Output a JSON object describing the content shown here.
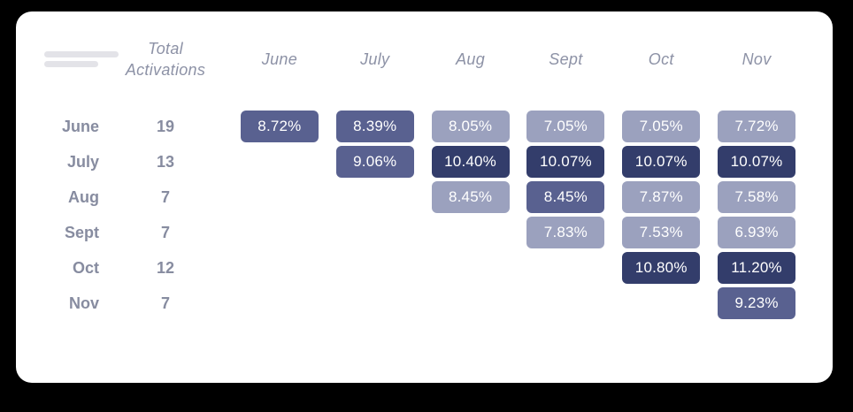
{
  "colors": {
    "background": "#000000",
    "card_background": "#ffffff",
    "light": "#9ba1be",
    "medium": "#596190",
    "dark": "#333d6b",
    "cell_text": "#ffffff",
    "header_text": "#8d92a6",
    "row_label_text": "#878ca0",
    "skeleton_bar": "#e3e3e8"
  },
  "chart_data": {
    "type": "heatmap",
    "title": "",
    "total_label": "Total Activations",
    "columns": [
      "June",
      "July",
      "Aug",
      "Sept",
      "Oct",
      "Nov"
    ],
    "legend_levels": [
      "light",
      "medium",
      "dark"
    ],
    "rows": [
      {
        "label": "June",
        "total": "19",
        "cells": [
          {
            "col": 0,
            "value": "8.72%",
            "level": "medium"
          },
          {
            "col": 1,
            "value": "8.39%",
            "level": "medium"
          },
          {
            "col": 2,
            "value": "8.05%",
            "level": "light"
          },
          {
            "col": 3,
            "value": "7.05%",
            "level": "light"
          },
          {
            "col": 4,
            "value": "7.05%",
            "level": "light"
          },
          {
            "col": 5,
            "value": "7.72%",
            "level": "light"
          }
        ]
      },
      {
        "label": "July",
        "total": "13",
        "cells": [
          {
            "col": 1,
            "value": "9.06%",
            "level": "medium"
          },
          {
            "col": 2,
            "value": "10.40%",
            "level": "dark"
          },
          {
            "col": 3,
            "value": "10.07%",
            "level": "dark"
          },
          {
            "col": 4,
            "value": "10.07%",
            "level": "dark"
          },
          {
            "col": 5,
            "value": "10.07%",
            "level": "dark"
          }
        ]
      },
      {
        "label": "Aug",
        "total": "7",
        "cells": [
          {
            "col": 2,
            "value": "8.45%",
            "level": "light"
          },
          {
            "col": 3,
            "value": "8.45%",
            "level": "medium"
          },
          {
            "col": 4,
            "value": "7.87%",
            "level": "light"
          },
          {
            "col": 5,
            "value": "7.58%",
            "level": "light"
          }
        ]
      },
      {
        "label": "Sept",
        "total": "7",
        "cells": [
          {
            "col": 3,
            "value": "7.83%",
            "level": "light"
          },
          {
            "col": 4,
            "value": "7.53%",
            "level": "light"
          },
          {
            "col": 5,
            "value": "6.93%",
            "level": "light"
          }
        ]
      },
      {
        "label": "Oct",
        "total": "12",
        "cells": [
          {
            "col": 4,
            "value": "10.80%",
            "level": "dark"
          },
          {
            "col": 5,
            "value": "11.20%",
            "level": "dark"
          }
        ]
      },
      {
        "label": "Nov",
        "total": "7",
        "cells": [
          {
            "col": 5,
            "value": "9.23%",
            "level": "medium"
          }
        ]
      }
    ]
  }
}
